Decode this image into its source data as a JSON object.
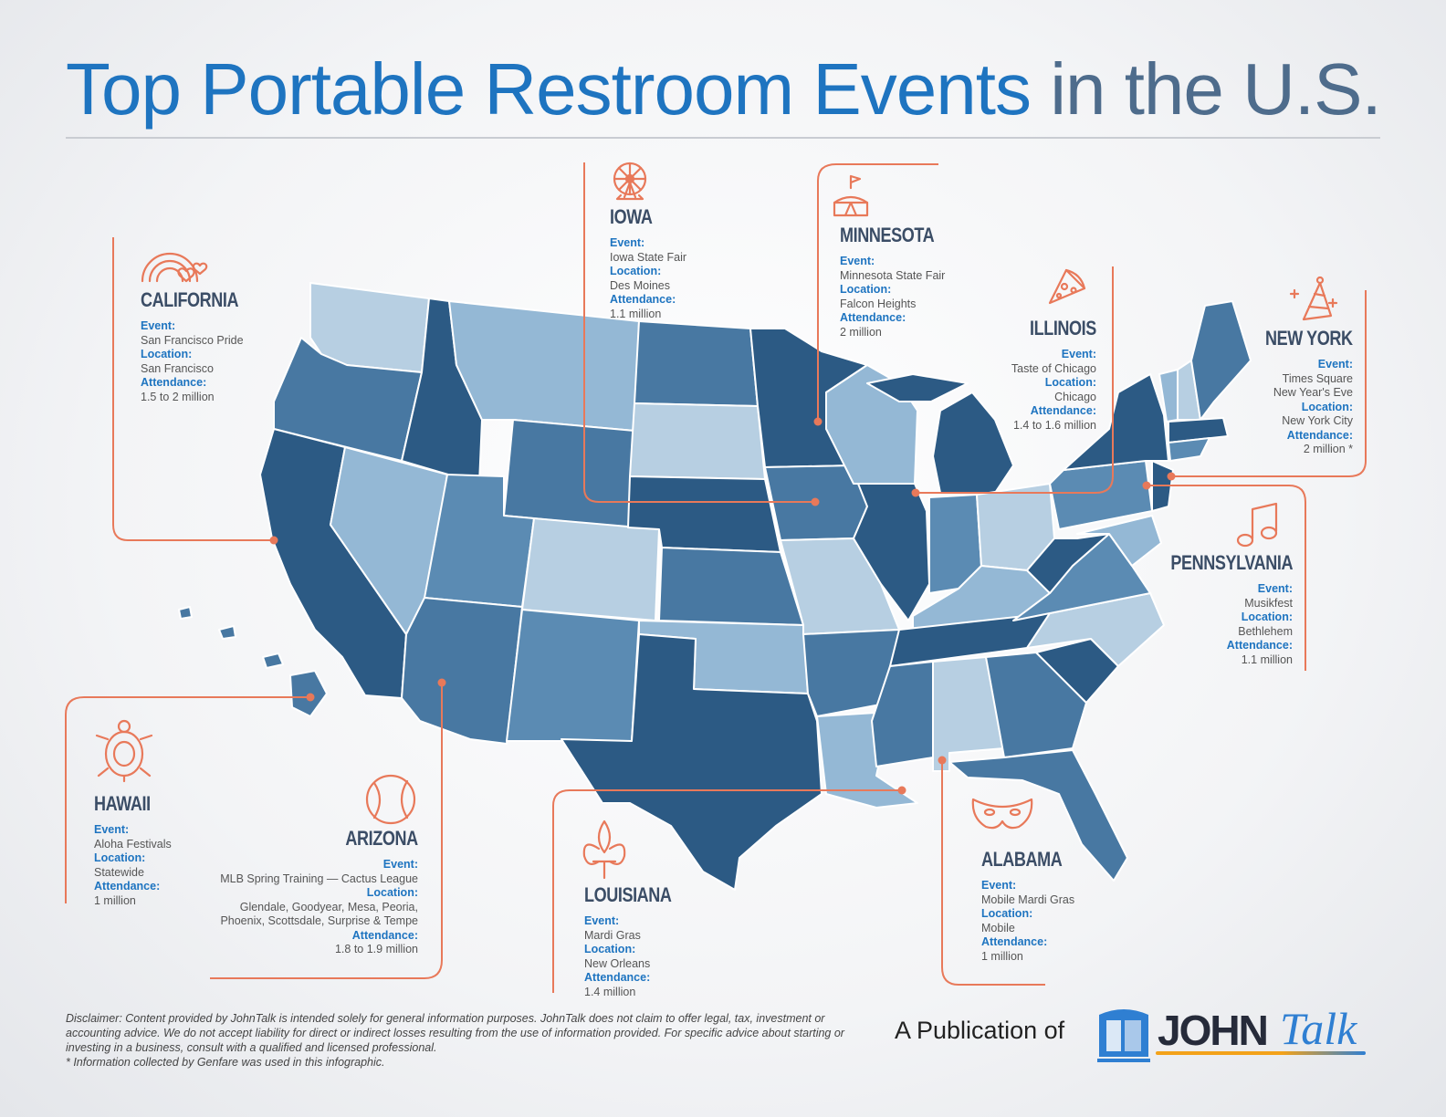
{
  "title": {
    "part1": "Top Portable Restroom Events",
    "part2": " in the U.S."
  },
  "colors": {
    "dark": "#2c5a84",
    "mid": "#4878a2",
    "midlight": "#5b8bb3",
    "light": "#94b8d5",
    "pale": "#b7cfe2",
    "accent": "#e8795a",
    "label_blue": "#1e74c0"
  },
  "cards": {
    "california": {
      "state": "CALIFORNIA",
      "event_label": "Event:",
      "event": "San Francisco Pride",
      "location_label": "Location:",
      "location": "San Francisco",
      "attendance_label": "Attendance:",
      "attendance": "1.5 to 2 million",
      "icon": "rainbow-hearts-icon"
    },
    "iowa": {
      "state": "IOWA",
      "event_label": "Event:",
      "event": "Iowa State Fair",
      "location_label": "Location:",
      "location": "Des Moines",
      "attendance_label": "Attendance:",
      "attendance": "1.1 million",
      "icon": "ferris-wheel-icon"
    },
    "minnesota": {
      "state": "MINNESOTA",
      "event_label": "Event:",
      "event": "Minnesota State Fair",
      "location_label": "Location:",
      "location": "Falcon Heights",
      "attendance_label": "Attendance:",
      "attendance": "2 million",
      "icon": "circus-tent-icon"
    },
    "illinois": {
      "state": "ILLINOIS",
      "event_label": "Event:",
      "event": "Taste of Chicago",
      "location_label": "Location:",
      "location": "Chicago",
      "attendance_label": "Attendance:",
      "attendance": "1.4 to 1.6 million",
      "icon": "pizza-slice-icon"
    },
    "newyork": {
      "state": "NEW YORK",
      "event_label": "Event:",
      "event": "Times Square\nNew Year's Eve",
      "location_label": "Location:",
      "location": "New York City",
      "attendance_label": "Attendance:",
      "attendance": "2 million *",
      "icon": "party-hat-icon"
    },
    "pennsylvania": {
      "state": "PENNSYLVANIA",
      "event_label": "Event:",
      "event": "Musikfest",
      "location_label": "Location:",
      "location": "Bethlehem",
      "attendance_label": "Attendance:",
      "attendance": "1.1 million",
      "icon": "music-note-icon"
    },
    "hawaii": {
      "state": "HAWAII",
      "event_label": "Event:",
      "event": "Aloha Festivals",
      "location_label": "Location:",
      "location": "Statewide",
      "attendance_label": "Attendance:",
      "attendance": "1 million",
      "icon": "turtle-icon"
    },
    "arizona": {
      "state": "ARIZONA",
      "event_label": "Event:",
      "event": "MLB Spring Training — Cactus League",
      "location_label": "Location:",
      "location": "Glendale, Goodyear, Mesa, Peoria,\nPhoenix, Scottsdale, Surprise & Tempe",
      "attendance_label": "Attendance:",
      "attendance": "1.8 to 1.9 million",
      "icon": "baseball-icon"
    },
    "louisiana": {
      "state": "LOUISIANA",
      "event_label": "Event:",
      "event": "Mardi Gras",
      "location_label": "Location:",
      "location": "New Orleans",
      "attendance_label": "Attendance:",
      "attendance": "1.4 million",
      "icon": "fleur-de-lis-icon"
    },
    "alabama": {
      "state": "ALABAMA",
      "event_label": "Event:",
      "event": "Mobile Mardi Gras",
      "location_label": "Location:",
      "location": "Mobile",
      "attendance_label": "Attendance:",
      "attendance": "1 million",
      "icon": "mardi-gras-mask-icon"
    }
  },
  "disclaimer": {
    "text": "Disclaimer: Content provided by JohnTalk is intended solely for general information purposes. JohnTalk does not claim to offer legal, tax, investment or accounting advice. We do not accept liability for direct or indirect losses resulting from the use of information provided. For specific advice about starting or investing in a business, consult with a qualified and licensed professional.",
    "note": "* Information collected by Genfare was used in this infographic."
  },
  "publication": {
    "label": "A Publication of",
    "logo_john": "JOHN",
    "logo_talk": "Talk"
  }
}
